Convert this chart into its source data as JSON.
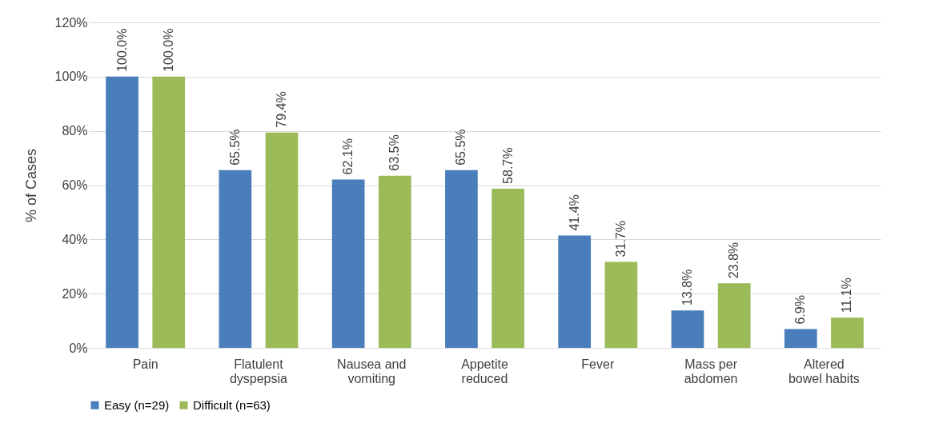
{
  "chart_data": {
    "type": "bar",
    "ylabel": "% of Cases",
    "categories": [
      "Pain",
      "Flatulent\ndyspepsia",
      "Nausea and\nvomiting",
      "Appetite\nreduced",
      "Fever",
      "Mass per\nabdomen",
      "Altered\nbowel habits"
    ],
    "series": [
      {
        "name": "Easy (n=29)",
        "color": "#4a7ebb",
        "values": [
          100,
          65.5,
          62.1,
          65.5,
          41.4,
          13.8,
          6.9
        ],
        "value_labels": [
          "100.0%",
          "65.5%",
          "62.1%",
          "65.5%",
          "41.4%",
          "13.8%",
          "6.9%"
        ]
      },
      {
        "name": "Difficult (n=63)",
        "color": "#9bbb59",
        "values": [
          100,
          79.4,
          63.5,
          58.7,
          31.7,
          23.8,
          11.1
        ],
        "value_labels": [
          "100.0%",
          "79.4%",
          "63.5%",
          "58.7%",
          "31.7%",
          "23.8%",
          "11.1%"
        ]
      }
    ],
    "ylim": [
      0,
      120
    ],
    "yticks": [
      {
        "value": 0,
        "label": "0%"
      },
      {
        "value": 20,
        "label": "20%"
      },
      {
        "value": 40,
        "label": "40%"
      },
      {
        "value": 60,
        "label": "60%"
      },
      {
        "value": 80,
        "label": "80%"
      },
      {
        "value": 100,
        "label": "100%"
      },
      {
        "value": 120,
        "label": "120%"
      }
    ],
    "grid": "y",
    "legend": "bottom"
  }
}
